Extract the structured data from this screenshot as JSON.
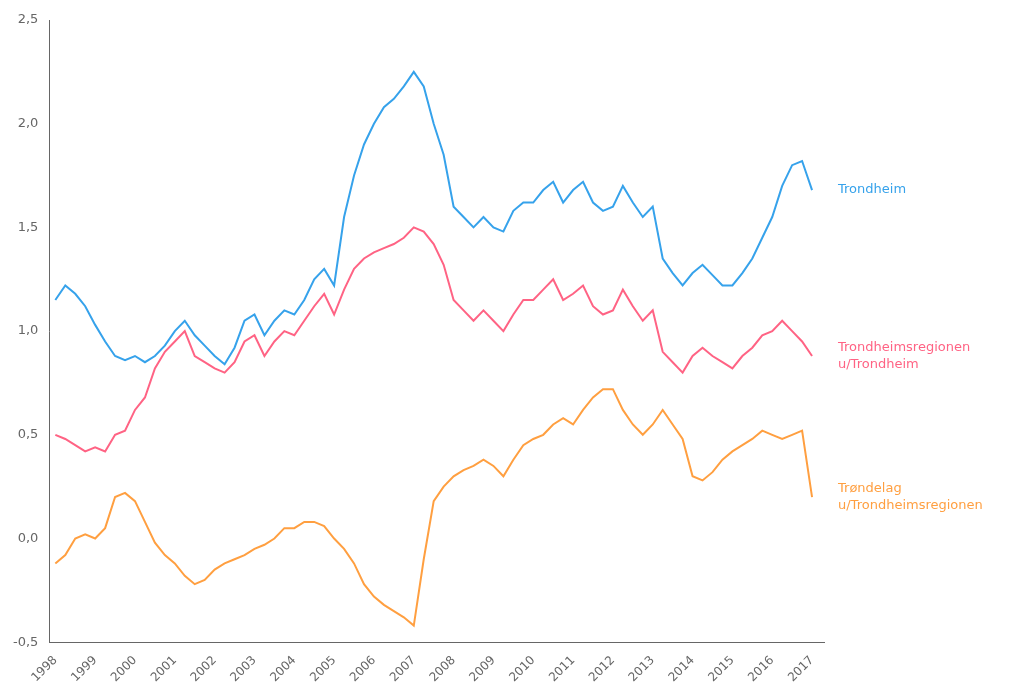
{
  "chart_data": {
    "type": "line",
    "x": [
      1998,
      1998.25,
      1998.5,
      1998.75,
      1999,
      1999.25,
      1999.5,
      1999.75,
      2000,
      2000.25,
      2000.5,
      2000.75,
      2001,
      2001.25,
      2001.5,
      2001.75,
      2002,
      2002.25,
      2002.5,
      2002.75,
      2003,
      2003.25,
      2003.5,
      2003.75,
      2004,
      2004.25,
      2004.5,
      2004.75,
      2005,
      2005.25,
      2005.5,
      2005.75,
      2006,
      2006.25,
      2006.5,
      2006.75,
      2007,
      2007.25,
      2007.5,
      2007.75,
      2008,
      2008.25,
      2008.5,
      2008.75,
      2009,
      2009.25,
      2009.5,
      2009.75,
      2010,
      2010.25,
      2010.5,
      2010.75,
      2011,
      2011.25,
      2011.5,
      2011.75,
      2012,
      2012.25,
      2012.5,
      2012.75,
      2013,
      2013.25,
      2013.5,
      2013.75,
      2014,
      2014.25,
      2014.5,
      2014.75,
      2015,
      2015.25,
      2015.5,
      2015.75,
      2016,
      2016.25,
      2016.5,
      2016.75,
      2017
    ],
    "series": [
      {
        "name": "Trondheim",
        "values": [
          1.15,
          1.22,
          1.18,
          1.12,
          1.03,
          0.95,
          0.88,
          0.86,
          0.88,
          0.85,
          0.88,
          0.93,
          1.0,
          1.05,
          0.98,
          0.93,
          0.88,
          0.84,
          0.92,
          1.05,
          1.08,
          0.98,
          1.05,
          1.1,
          1.08,
          1.15,
          1.25,
          1.3,
          1.22,
          1.55,
          1.75,
          1.9,
          2.0,
          2.08,
          2.12,
          2.18,
          2.25,
          2.18,
          2.0,
          1.85,
          1.6,
          1.55,
          1.5,
          1.55,
          1.5,
          1.48,
          1.58,
          1.62,
          1.62,
          1.68,
          1.72,
          1.62,
          1.68,
          1.72,
          1.62,
          1.58,
          1.6,
          1.7,
          1.62,
          1.55,
          1.6,
          1.35,
          1.28,
          1.22,
          1.28,
          1.32,
          1.27,
          1.22,
          1.22,
          1.28,
          1.35,
          1.45,
          1.55,
          1.7,
          1.8,
          1.82,
          1.68
        ]
      },
      {
        "name": "Trondheimsregionen\nu/Trondheim",
        "values": [
          0.5,
          0.48,
          0.45,
          0.42,
          0.44,
          0.42,
          0.5,
          0.52,
          0.62,
          0.68,
          0.82,
          0.9,
          0.95,
          1.0,
          0.88,
          0.85,
          0.82,
          0.8,
          0.85,
          0.95,
          0.98,
          0.88,
          0.95,
          1.0,
          0.98,
          1.05,
          1.12,
          1.18,
          1.08,
          1.2,
          1.3,
          1.35,
          1.38,
          1.4,
          1.42,
          1.45,
          1.5,
          1.48,
          1.42,
          1.32,
          1.15,
          1.1,
          1.05,
          1.1,
          1.05,
          1.0,
          1.08,
          1.15,
          1.15,
          1.2,
          1.25,
          1.15,
          1.18,
          1.22,
          1.12,
          1.08,
          1.1,
          1.2,
          1.12,
          1.05,
          1.1,
          0.9,
          0.85,
          0.8,
          0.88,
          0.92,
          0.88,
          0.85,
          0.82,
          0.88,
          0.92,
          0.98,
          1.0,
          1.05,
          1.0,
          0.95,
          0.88
        ]
      },
      {
        "name": "Trøndelag\nu/Trondheimsregionen",
        "values": [
          -0.12,
          -0.08,
          0.0,
          0.02,
          0.0,
          0.05,
          0.2,
          0.22,
          0.18,
          0.08,
          -0.02,
          -0.08,
          -0.12,
          -0.18,
          -0.22,
          -0.2,
          -0.15,
          -0.12,
          -0.1,
          -0.08,
          -0.05,
          -0.03,
          0.0,
          0.05,
          0.05,
          0.08,
          0.08,
          0.06,
          0.0,
          -0.05,
          -0.12,
          -0.22,
          -0.28,
          -0.32,
          -0.35,
          -0.38,
          -0.42,
          -0.1,
          0.18,
          0.25,
          0.3,
          0.33,
          0.35,
          0.38,
          0.35,
          0.3,
          0.38,
          0.45,
          0.48,
          0.5,
          0.55,
          0.58,
          0.55,
          0.62,
          0.68,
          0.72,
          0.72,
          0.62,
          0.55,
          0.5,
          0.55,
          0.62,
          0.55,
          0.48,
          0.3,
          0.28,
          0.32,
          0.38,
          0.42,
          0.45,
          0.48,
          0.52,
          0.5,
          0.48,
          0.5,
          0.52,
          0.2
        ]
      }
    ],
    "xlim": [
      1997.85,
      2017.3
    ],
    "xticks": [
      1998,
      1999,
      2000,
      2001,
      2002,
      2003,
      2004,
      2005,
      2006,
      2007,
      2008,
      2009,
      2010,
      2011,
      2012,
      2013,
      2014,
      2015,
      2016,
      2017
    ],
    "ylim": [
      -0.5,
      2.5
    ],
    "yticks": [
      {
        "value": -0.5,
        "label": "-0,5"
      },
      {
        "value": 0.0,
        "label": "0,0"
      },
      {
        "value": 0.5,
        "label": "0,5"
      },
      {
        "value": 1.0,
        "label": "1,0"
      },
      {
        "value": 1.5,
        "label": "1,5"
      },
      {
        "value": 2.0,
        "label": "2,0"
      },
      {
        "value": 2.5,
        "label": "2,5"
      }
    ],
    "grid": false
  }
}
